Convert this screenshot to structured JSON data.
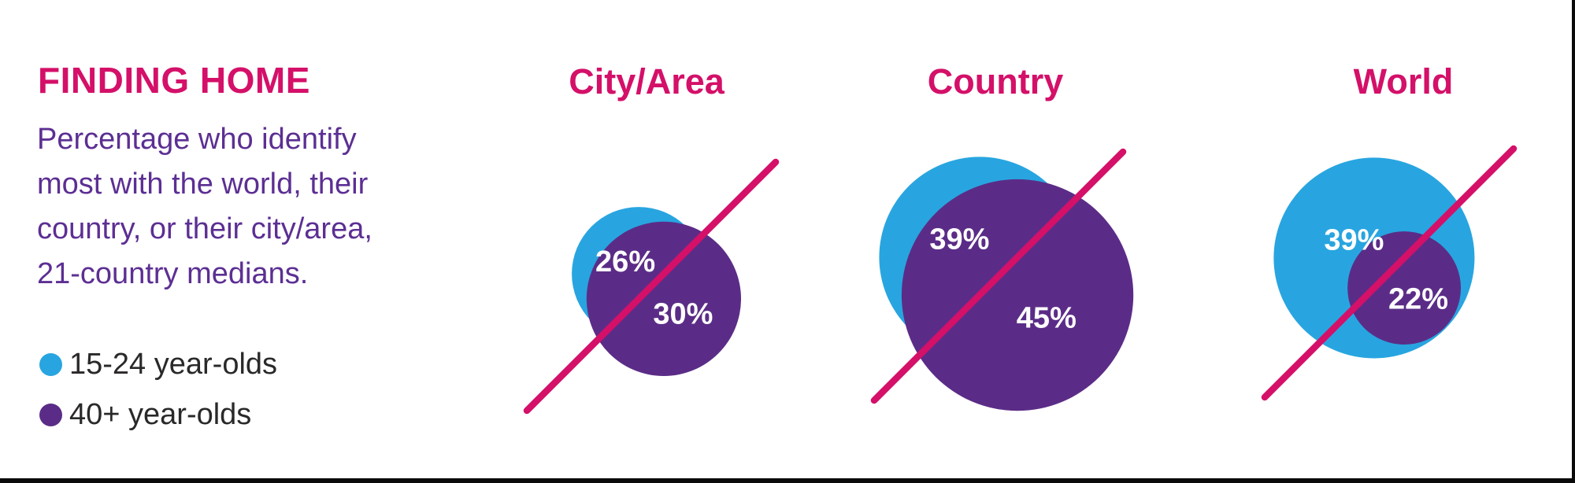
{
  "header": {
    "title": "FINDING HOME",
    "subtitle_lines": [
      "Percentage who identify",
      "most with the world, their",
      "country, or their city/area,",
      "21-country medians."
    ]
  },
  "legend": {
    "items": [
      {
        "key": "youth",
        "label": "15-24 year-olds",
        "color": "#28A5E0"
      },
      {
        "key": "adult",
        "label": "40+ year-olds",
        "color": "#5B2C87"
      }
    ]
  },
  "colors": {
    "accent_pink": "#D41069",
    "youth_blue": "#28A5E0",
    "adult_purple": "#5B2C87",
    "body_purple": "#5C2F93",
    "legend_text": "#2B282A",
    "value_label_white": "#FFFFFF",
    "frame_black": "#0A0A0A"
  },
  "chart_data": {
    "type": "proportional-circles",
    "description": "Three pairs of overlapping circles sized by percentage; each pair split by a diagonal magenta divider line; blue circle upper-left (15-24 year-olds), purple circle lower-right (40+ year-olds)",
    "title": "FINDING HOME",
    "subtitle": "Percentage who identify most with the world, their country, or their city/area, 21-country medians.",
    "categories": [
      "City/Area",
      "Country",
      "World"
    ],
    "series": [
      {
        "name": "15-24 year-olds",
        "values": [
          26,
          39,
          39
        ],
        "unit": "%"
      },
      {
        "name": "40+ year-olds",
        "values": [
          30,
          45,
          22
        ],
        "unit": "%"
      }
    ],
    "value_labels": [
      [
        "26%",
        "30%"
      ],
      [
        "39%",
        "45%"
      ],
      [
        "39%",
        "22%"
      ]
    ],
    "legend_position": "left"
  }
}
